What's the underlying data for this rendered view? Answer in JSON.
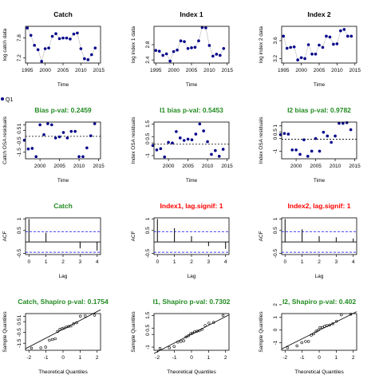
{
  "chart_data": [
    {
      "type": "scatter",
      "title": "Catch",
      "title_color": "#000000",
      "xlabel": "Time",
      "ylabel": "log catch data",
      "xlim": [
        1994.5,
        2015.5
      ],
      "ylim": [
        7.05,
        8.15
      ],
      "xticks": [
        1995,
        2000,
        2005,
        2010,
        2015
      ],
      "yticks": [
        7.2,
        7.8
      ],
      "connect": true,
      "ref_line": null,
      "series": [
        {
          "x": [
            1995,
            1996,
            1997,
            1998,
            1999,
            2000,
            2001,
            2002,
            2003,
            2004,
            2005,
            2006,
            2007,
            2008,
            2009,
            2010,
            2011,
            2012,
            2013,
            2014
          ],
          "y": [
            8.1,
            7.88,
            7.58,
            7.45,
            7.1,
            7.48,
            7.5,
            7.85,
            7.93,
            7.78,
            7.8,
            7.8,
            7.77,
            7.92,
            7.95,
            7.48,
            7.18,
            7.15,
            7.3,
            7.5
          ]
        }
      ]
    },
    {
      "type": "scatter",
      "title": "Index 1",
      "title_color": "#000000",
      "xlabel": "Time",
      "ylabel": "log index 1 data",
      "xlim": [
        1994.5,
        2015.5
      ],
      "ylim": [
        2.32,
        3.28
      ],
      "xticks": [
        1995,
        2000,
        2005,
        2010,
        2015
      ],
      "yticks": [
        2.4,
        2.8
      ],
      "connect": true,
      "ref_line": null,
      "series": [
        {
          "x": [
            1995,
            1996,
            1997,
            1998,
            1999,
            2000,
            2001,
            2002,
            2003,
            2004,
            2005,
            2006,
            2007,
            2008,
            2009,
            2010,
            2011,
            2012,
            2013,
            2014
          ],
          "y": [
            2.65,
            2.63,
            2.52,
            2.56,
            2.37,
            2.62,
            2.66,
            2.9,
            2.88,
            2.7,
            2.72,
            2.73,
            2.9,
            3.25,
            3.24,
            2.78,
            2.5,
            2.55,
            2.52,
            2.7
          ]
        }
      ]
    },
    {
      "type": "scatter",
      "title": "Index 2",
      "title_color": "#000000",
      "xlabel": "Time",
      "ylabel": "log index 2 data",
      "xlim": [
        1994.5,
        2015.5
      ],
      "ylim": [
        3.1,
        3.92
      ],
      "xticks": [
        1995,
        2000,
        2005,
        2010,
        2015
      ],
      "yticks": [
        3.2,
        3.6
      ],
      "connect": true,
      "ref_line": null,
      "series": [
        {
          "x": [
            1995,
            1996,
            1997,
            1998,
            1999,
            2000,
            2001,
            2002,
            2003,
            2004,
            2005,
            2006,
            2007,
            2008,
            2009,
            2010,
            2011,
            2012,
            2013,
            2014
          ],
          "y": [
            3.7,
            3.43,
            3.45,
            3.46,
            3.17,
            3.22,
            3.2,
            3.51,
            3.3,
            3.3,
            3.5,
            3.45,
            3.7,
            3.68,
            3.52,
            3.53,
            3.82,
            3.85,
            3.7,
            3.7
          ]
        }
      ]
    },
    {
      "type": "scatter",
      "title": "Bias p-val: 0.2459",
      "title_color": "#228B22",
      "xlabel": "Time",
      "ylabel": "Catch OSA residuals",
      "xlim": [
        1996.3,
        2015.5
      ],
      "ylim": [
        -2.1,
        1.25
      ],
      "xticks": [
        2000,
        2005,
        2010,
        2015
      ],
      "yticks": [
        -1.5,
        -0.5,
        0.5,
        1.0
      ],
      "connect": false,
      "ref_line": -0.05,
      "series": [
        {
          "x": [
            1996,
            1997,
            1998,
            1999,
            2000,
            2001,
            2002,
            2003,
            2004,
            2005,
            2006,
            2007,
            2008,
            2009,
            2010,
            2011,
            2012,
            2013,
            2014
          ],
          "y": [
            -0.4,
            -1.2,
            -1.15,
            -1.9,
            1.0,
            0.1,
            1.1,
            1.0,
            -0.2,
            -0.1,
            0.3,
            -0.2,
            0.4,
            0.4,
            -1.9,
            -1.9,
            -1.1,
            0.0,
            1.1
          ]
        }
      ]
    },
    {
      "type": "scatter",
      "title": "I1 bias p-val: 0.5453",
      "title_color": "#228B22",
      "xlabel": "Time",
      "ylabel": "Index OSA residuals",
      "xlim": [
        1996.3,
        2015.5
      ],
      "ylim": [
        -1.25,
        1.65
      ],
      "xticks": [
        2000,
        2005,
        2010,
        2015
      ],
      "yticks": [
        -1.0,
        0.0,
        0.5,
        1.5
      ],
      "connect": false,
      "ref_line": -0.1,
      "series": [
        {
          "x": [
            1996,
            1997,
            1998,
            1999,
            2000,
            2001,
            2002,
            2003,
            2004,
            2005,
            2006,
            2007,
            2008,
            2009,
            2010,
            2011,
            2012,
            2013,
            2014
          ],
          "y": [
            -0.2,
            -0.55,
            -0.45,
            -1.1,
            0.05,
            0.0,
            0.9,
            0.4,
            0.2,
            0.3,
            0.25,
            0.7,
            1.5,
            0.95,
            0.1,
            -0.9,
            -0.6,
            -1.05,
            -0.5
          ]
        }
      ]
    },
    {
      "type": "scatter",
      "title": "I2 bias p-val: 0.9782",
      "title_color": "#228B22",
      "xlabel": "Time",
      "ylabel": "Index OSA residuals",
      "xlim": [
        1996.3,
        2015.5
      ],
      "ylim": [
        -1.6,
        1.3
      ],
      "xticks": [
        2000,
        2005,
        2010,
        2015
      ],
      "yticks": [
        -1.0,
        0.0,
        0.5,
        1.0
      ],
      "connect": false,
      "ref_line": -0.05,
      "series": [
        {
          "x": [
            1996,
            1997,
            1998,
            1999,
            2000,
            2001,
            2002,
            2003,
            2004,
            2005,
            2006,
            2007,
            2008,
            2009,
            2010,
            2011,
            2012,
            2013,
            2014
          ],
          "y": [
            0.3,
            0.4,
            0.35,
            -0.9,
            -0.9,
            -1.25,
            -0.1,
            -1.4,
            -1.0,
            0.0,
            -1.0,
            0.5,
            0.2,
            -0.3,
            0.2,
            1.2,
            1.2,
            1.25,
            0.7
          ]
        }
      ]
    },
    {
      "type": "acf",
      "title": "Catch",
      "title_color": "#228B22",
      "xlabel": "Lag",
      "ylabel": "ACF",
      "xlim": [
        -0.2,
        4.2
      ],
      "ylim": [
        -0.55,
        1.05
      ],
      "xticks": [
        0,
        1,
        2,
        3,
        4
      ],
      "yticks": [
        -0.5,
        0.5,
        1.0
      ],
      "lags": [
        0,
        1,
        2,
        3,
        4
      ],
      "acf": [
        1.0,
        0.4,
        0.0,
        -0.28,
        -0.38
      ],
      "conf": 0.45
    },
    {
      "type": "acf",
      "title": "Index1, lag.signif: 1",
      "title_color": "#FF0000",
      "xlabel": "Lag",
      "ylabel": "ACF",
      "xlim": [
        -0.2,
        4.2
      ],
      "ylim": [
        -0.55,
        1.05
      ],
      "xticks": [
        0,
        1,
        2,
        3,
        4
      ],
      "yticks": [
        -0.5,
        0.5,
        1.0
      ],
      "lags": [
        0,
        1,
        2,
        3,
        4
      ],
      "acf": [
        1.0,
        0.6,
        0.25,
        -0.18,
        -0.3
      ],
      "conf": 0.45
    },
    {
      "type": "acf",
      "title": "Index2, lag.signif: 1",
      "title_color": "#FF0000",
      "xlabel": "Lag",
      "ylabel": "ACF",
      "xlim": [
        -0.2,
        4.2
      ],
      "ylim": [
        -0.55,
        1.05
      ],
      "xticks": [
        0,
        1,
        2,
        3,
        4
      ],
      "yticks": [
        -0.5,
        0.5,
        1.0
      ],
      "lags": [
        0,
        1,
        2,
        3,
        4
      ],
      "acf": [
        1.0,
        0.55,
        0.25,
        0.2,
        0.15
      ],
      "conf": 0.45
    },
    {
      "type": "qq",
      "title": "Catch, Shapiro p-val: 0.1754",
      "title_color": "#228B22",
      "xlabel": "Theoretical Quantiles",
      "ylabel": "Sample Quantiles",
      "xlim": [
        -2.2,
        2.2
      ],
      "ylim": [
        -2.15,
        1.25
      ],
      "xticks": [
        -2,
        -1,
        0,
        1,
        2
      ],
      "yticks": [
        -1.5,
        -0.5,
        0.5,
        1.0
      ],
      "series": [
        {
          "x": [
            -1.85,
            -1.3,
            -1.02,
            -0.8,
            -0.62,
            -0.46,
            -0.32,
            -0.18,
            -0.05,
            0.05,
            0.18,
            0.32,
            0.46,
            0.62,
            0.8,
            1.02,
            1.3,
            1.85
          ],
          "y": [
            -1.95,
            -1.92,
            -1.85,
            -1.22,
            -1.15,
            -1.08,
            -0.4,
            -0.2,
            -0.15,
            -0.1,
            0.0,
            0.05,
            0.1,
            0.3,
            0.4,
            1.0,
            1.02,
            1.1
          ]
        }
      ],
      "qq_line": [
        [
          -2.2,
          -2.0
        ],
        [
          2.2,
          1.6
        ]
      ]
    },
    {
      "type": "qq",
      "title": "I1, Shapiro p-val: 0.7302",
      "title_color": "#228B22",
      "xlabel": "Theoretical Quantiles",
      "ylabel": "Sample Quantiles",
      "xlim": [
        -2.2,
        2.2
      ],
      "ylim": [
        -1.25,
        1.65
      ],
      "xticks": [
        -2,
        -1,
        0,
        1,
        2
      ],
      "yticks": [
        -1.0,
        0.0,
        0.5,
        1.5
      ],
      "series": [
        {
          "x": [
            -1.85,
            -1.3,
            -1.02,
            -0.8,
            -0.62,
            -0.46,
            -0.32,
            -0.18,
            -0.05,
            0.05,
            0.18,
            0.32,
            0.46,
            0.62,
            0.8,
            1.02,
            1.3,
            1.85
          ],
          "y": [
            -1.1,
            -1.05,
            -0.95,
            -0.6,
            -0.55,
            -0.5,
            -0.2,
            -0.1,
            0.05,
            0.1,
            0.2,
            0.25,
            0.3,
            0.4,
            0.7,
            0.9,
            0.95,
            1.5
          ]
        }
      ],
      "qq_line": [
        [
          -2.2,
          -1.5
        ],
        [
          2.2,
          1.55
        ]
      ]
    },
    {
      "type": "qq",
      "title": "I2, Shapiro p-val: 0.402",
      "title_color": "#228B22",
      "xlabel": "Theoretical Quantiles",
      "ylabel": "Sample Quantiles",
      "xlim": [
        -2.2,
        2.2
      ],
      "ylim": [
        -1.6,
        1.3
      ],
      "xticks": [
        -2,
        -1,
        0,
        1,
        2
      ],
      "yticks": [
        -1,
        0,
        1,
        2
      ],
      "series": [
        {
          "x": [
            -1.85,
            -1.3,
            -1.02,
            -0.8,
            -0.62,
            -0.46,
            -0.32,
            -0.18,
            -0.05,
            0.05,
            0.18,
            0.32,
            0.46,
            0.62,
            0.8,
            1.02,
            1.3,
            1.85
          ],
          "y": [
            -1.4,
            -1.25,
            -1.0,
            -0.9,
            -0.9,
            -0.4,
            -0.3,
            -0.1,
            0.0,
            0.2,
            0.2,
            0.3,
            0.35,
            0.4,
            0.5,
            0.7,
            1.2,
            1.25
          ]
        }
      ],
      "qq_line": [
        [
          -2.2,
          -1.5
        ],
        [
          2.2,
          1.45
        ]
      ]
    }
  ],
  "legend": {
    "label": "Q1",
    "color": "#00008B"
  },
  "point_color": "#00008B",
  "reference_color": "#000000",
  "conf_color": "#0000FF"
}
